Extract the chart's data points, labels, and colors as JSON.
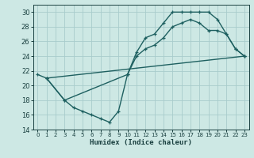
{
  "xlabel": "Humidex (Indice chaleur)",
  "ylabel": "",
  "bg_color": "#cde8e4",
  "grid_color": "#a8cccc",
  "line_color": "#1e6060",
  "xlim": [
    -0.5,
    23.5
  ],
  "ylim": [
    14,
    31
  ],
  "xticks": [
    0,
    1,
    2,
    3,
    4,
    5,
    6,
    7,
    8,
    9,
    10,
    11,
    12,
    13,
    14,
    15,
    16,
    17,
    18,
    19,
    20,
    21,
    22,
    23
  ],
  "yticks": [
    14,
    16,
    18,
    20,
    22,
    24,
    26,
    28,
    30
  ],
  "series1_x": [
    0,
    1,
    3,
    10,
    11,
    12,
    13,
    14,
    15,
    16,
    17,
    18,
    19,
    20,
    21,
    22,
    23
  ],
  "series1_y": [
    21.5,
    21,
    18,
    21.5,
    24.5,
    26.5,
    27,
    28.5,
    30,
    30,
    30,
    30,
    30,
    29,
    27,
    25,
    24
  ],
  "series2_x": [
    1,
    3,
    4,
    5,
    6,
    7,
    8,
    9,
    10,
    11,
    12,
    13,
    14,
    15,
    16,
    17,
    18,
    19,
    20,
    21,
    22,
    23
  ],
  "series2_y": [
    21,
    18,
    17,
    16.5,
    16,
    15.5,
    15,
    16.5,
    21.5,
    24,
    25,
    25.5,
    26.5,
    28,
    28.5,
    29,
    28.5,
    27.5,
    27.5,
    27,
    25,
    24
  ],
  "series3_x": [
    1,
    23
  ],
  "series3_y": [
    21,
    24
  ]
}
